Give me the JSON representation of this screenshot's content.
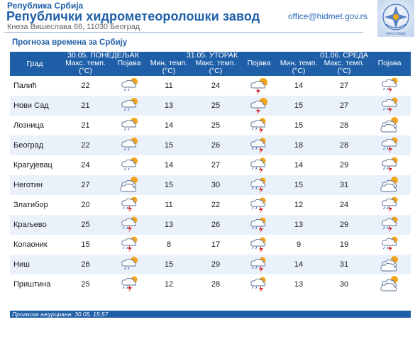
{
  "header": {
    "small_title": "Република Србија",
    "big_title": "Републички хидрометеоролошки завод",
    "address": "Кнеза Вишеслава 66, 11030 Београд",
    "email": "office@hidmet.gov.rs",
    "logo_label": "РХМЗ СРБИЈЕ"
  },
  "section_title": "Прогноза времена за Србију",
  "table": {
    "city_header": "Град",
    "days": [
      "30.05. ПОНЕДЕЉАК",
      "31.05. УТОРАК",
      "01.06. СРЕДА"
    ],
    "max_label": "Макс. темп. (°C)",
    "min_label": "Мин. темп. (°C)",
    "phen_label": "Појава",
    "rows": [
      {
        "city": "Палић",
        "d1_max": "22",
        "d1_icon": "partly-cloudy-rain-icon",
        "d2_min": "11",
        "d2_max": "24",
        "d2_icon": "sun-cloud-icon",
        "d3_min": "14",
        "d3_max": "27",
        "d3_icon": "cloud-storm-icon"
      },
      {
        "city": "Нови Сад",
        "d1_max": "21",
        "d1_icon": "partly-cloudy-rain-icon",
        "d2_min": "13",
        "d2_max": "25",
        "d2_icon": "sun-cloud-icon",
        "d3_min": "15",
        "d3_max": "27",
        "d3_icon": "cloud-storm-icon"
      },
      {
        "city": "Лозница",
        "d1_max": "21",
        "d1_icon": "partly-cloudy-rain-icon",
        "d2_min": "14",
        "d2_max": "25",
        "d2_icon": "storm-icon",
        "d3_min": "15",
        "d3_max": "28",
        "d3_icon": "partly-cloudy-icon"
      },
      {
        "city": "Београд",
        "d1_max": "22",
        "d1_icon": "partly-cloudy-rain-icon",
        "d2_min": "15",
        "d2_max": "26",
        "d2_icon": "storm-icon",
        "d3_min": "18",
        "d3_max": "28",
        "d3_icon": "cloud-storm-icon"
      },
      {
        "city": "Крагујевац",
        "d1_max": "24",
        "d1_icon": "partly-cloudy-rain-icon",
        "d2_min": "14",
        "d2_max": "27",
        "d2_icon": "storm-icon",
        "d3_min": "14",
        "d3_max": "29",
        "d3_icon": "cloud-storm-icon"
      },
      {
        "city": "Неготин",
        "d1_max": "27",
        "d1_icon": "partly-cloudy-icon",
        "d2_min": "15",
        "d2_max": "30",
        "d2_icon": "storm-icon",
        "d3_min": "15",
        "d3_max": "31",
        "d3_icon": "partly-cloudy-icon"
      },
      {
        "city": "Златибор",
        "d1_max": "20",
        "d1_icon": "cloud-storm-icon",
        "d2_min": "11",
        "d2_max": "22",
        "d2_icon": "storm-icon",
        "d3_min": "12",
        "d3_max": "24",
        "d3_icon": "cloud-storm-icon"
      },
      {
        "city": "Краљево",
        "d1_max": "25",
        "d1_icon": "cloud-storm-icon",
        "d2_min": "13",
        "d2_max": "26",
        "d2_icon": "storm-icon",
        "d3_min": "13",
        "d3_max": "29",
        "d3_icon": "cloud-storm-icon"
      },
      {
        "city": "Копаоник",
        "d1_max": "15",
        "d1_icon": "cloud-storm-icon",
        "d2_min": "8",
        "d2_max": "17",
        "d2_icon": "storm-icon",
        "d3_min": "9",
        "d3_max": "19",
        "d3_icon": "cloud-storm-icon"
      },
      {
        "city": "Ниш",
        "d1_max": "26",
        "d1_icon": "partly-cloudy-rain-icon",
        "d2_min": "15",
        "d2_max": "29",
        "d2_icon": "storm-icon",
        "d3_min": "14",
        "d3_max": "31",
        "d3_icon": "partly-cloudy-icon"
      },
      {
        "city": "Приштина",
        "d1_max": "25",
        "d1_icon": "cloud-storm-icon",
        "d2_min": "12",
        "d2_max": "28",
        "d2_icon": "storm-icon",
        "d3_min": "13",
        "d3_max": "30",
        "d3_icon": "partly-cloudy-icon"
      }
    ]
  },
  "footer": {
    "label": "Прогноза ажурирана:",
    "updated": "30.05. 15:57"
  },
  "colors": {
    "brand_blue": "#1f5fa8",
    "row_alt": "#eaf1fb",
    "sun": "#f2a51a",
    "lightning": "#d8262b"
  }
}
